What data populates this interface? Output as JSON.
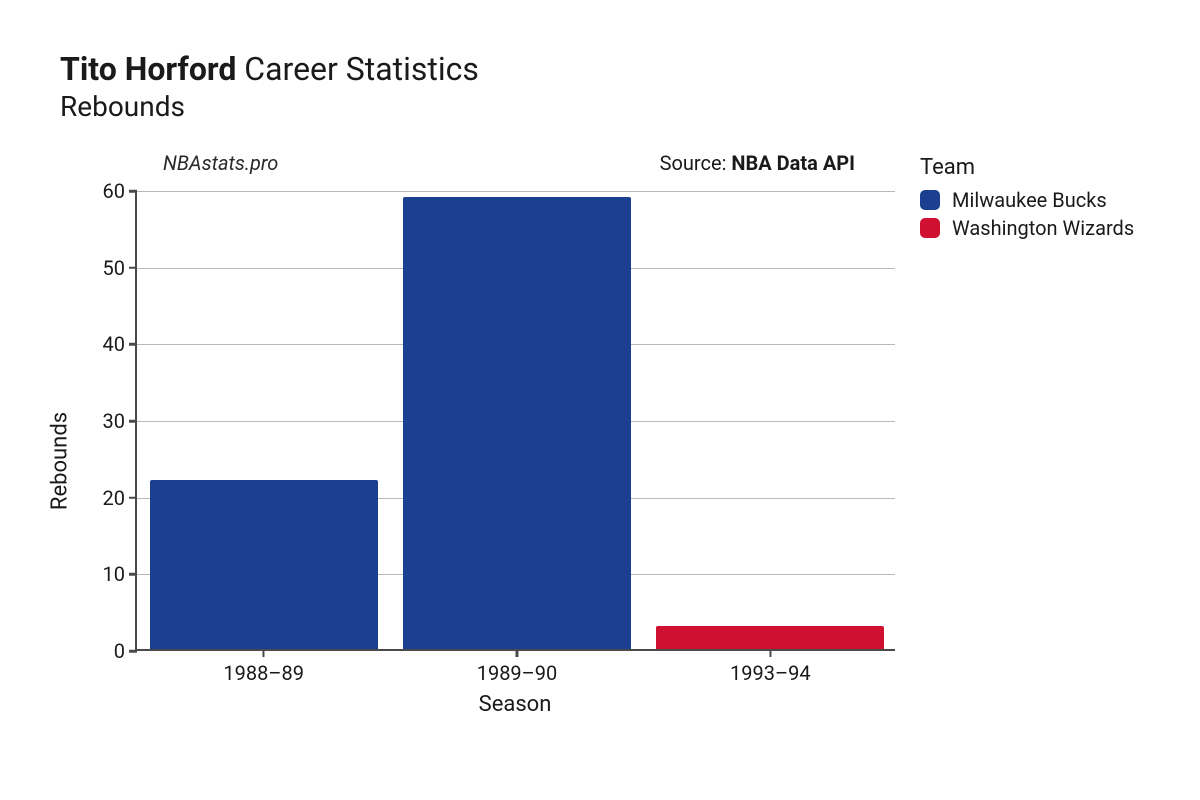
{
  "title": {
    "player_name": "Tito Horford",
    "suffix": "Career Statistics",
    "metric": "Rebounds"
  },
  "annotations": {
    "site": "NBAstats.pro",
    "source_prefix": "Source: ",
    "source_name": "NBA Data API"
  },
  "chart": {
    "type": "bar",
    "xlabel": "Season",
    "ylabel": "Rebounds",
    "ylim": [
      0,
      60
    ],
    "ytick_step": 10,
    "yticks": [
      0,
      10,
      20,
      30,
      40,
      50,
      60
    ],
    "categories": [
      "1988–89",
      "1989–90",
      "1993–94"
    ],
    "values": [
      22,
      59,
      3
    ],
    "bar_team_idx": [
      0,
      0,
      1
    ],
    "bar_width": 0.9,
    "background_color": "#ffffff",
    "axis_color": "#4a4a4a",
    "grid_color": "#b8b8b8",
    "label_fontsize": 22,
    "tick_fontsize": 20
  },
  "legend": {
    "title": "Team",
    "items": [
      {
        "label": "Milwaukee Bucks",
        "color": "#1b3f91"
      },
      {
        "label": "Washington Wizards",
        "color": "#cf1030"
      }
    ]
  }
}
